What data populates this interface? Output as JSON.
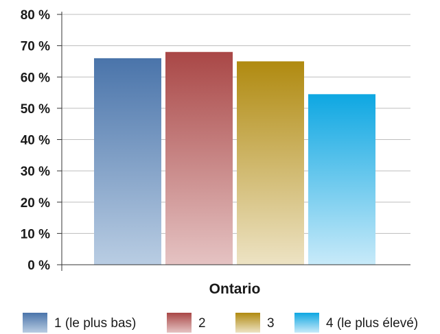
{
  "chart_data": {
    "type": "bar",
    "categories": [
      "Ontario"
    ],
    "series": [
      {
        "name": "1 (le plus bas)",
        "values": [
          66
        ],
        "color_top": "#4a74aa",
        "color_bottom": "#b9cde3"
      },
      {
        "name": "2",
        "values": [
          68
        ],
        "color_top": "#a94746",
        "color_bottom": "#e5c3c3"
      },
      {
        "name": "3",
        "values": [
          65
        ],
        "color_top": "#b08a10",
        "color_bottom": "#ede3c4"
      },
      {
        "name": "4 (le plus élevé)",
        "values": [
          54.5
        ],
        "color_top": "#0ea7e2",
        "color_bottom": "#c8eaf9"
      }
    ],
    "ylim": [
      0,
      80
    ],
    "yticks": [
      "0 %",
      "10 %",
      "20 %",
      "30 %",
      "40 %",
      "50 %",
      "60 %",
      "70 %",
      "80 %"
    ],
    "grid": true,
    "legend_position": "bottom"
  }
}
